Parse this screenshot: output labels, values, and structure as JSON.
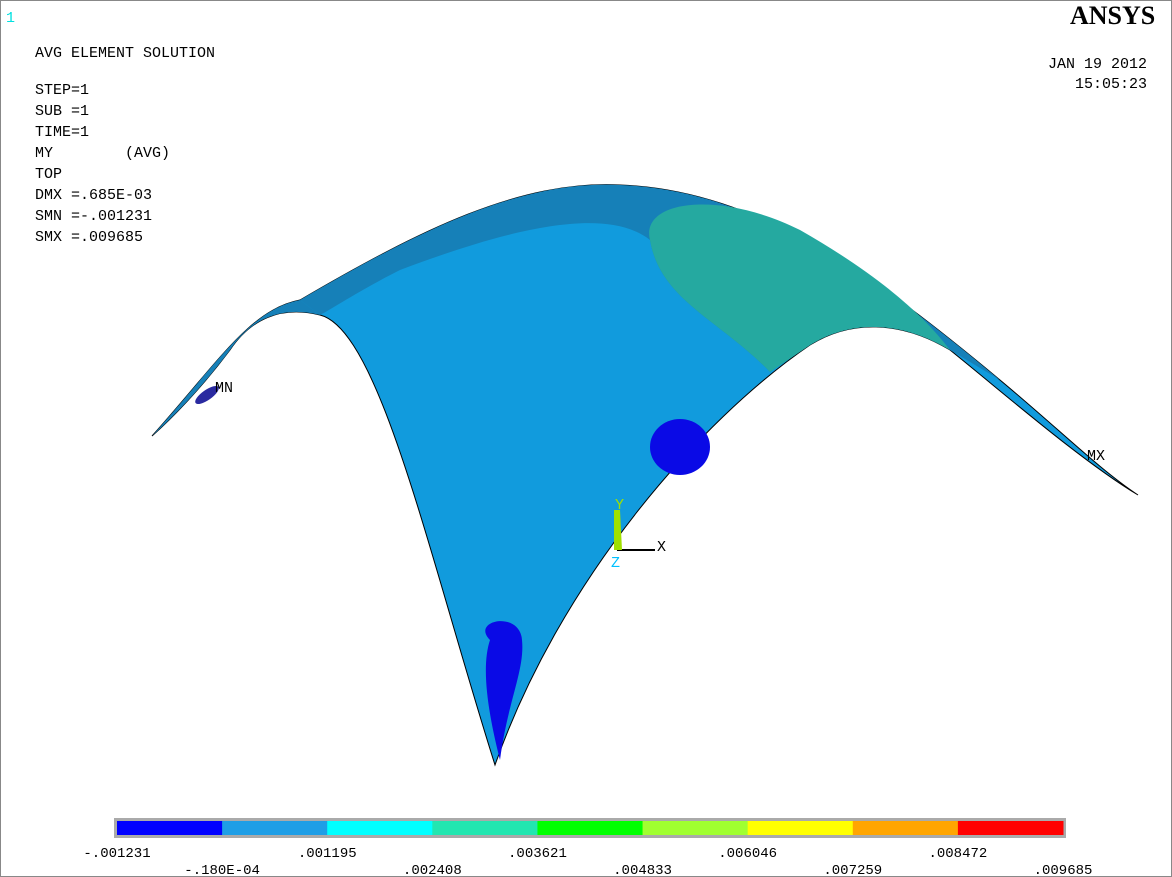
{
  "window_number": "1",
  "logo": "ANSYS",
  "info_lines": [
    "AVG ELEMENT SOLUTION",
    "STEP=1",
    "SUB =1",
    "TIME=1",
    "MY        (AVG)",
    "TOP",
    "DMX =.685E-03",
    "SMN =-.001231",
    "SMX =.009685"
  ],
  "date": "JAN 19 2012",
  "time": "15:05:23",
  "markers": {
    "min": "MN",
    "max": "MX"
  },
  "axes": {
    "x": "X",
    "y": "Y",
    "z": "Z"
  },
  "legend": {
    "colors": [
      "#0000ff",
      "#1e9ee6",
      "#00ffff",
      "#22e6b0",
      "#00ff00",
      "#a0ff30",
      "#ffff00",
      "#ffa500",
      "#ff0000"
    ],
    "labels": [
      "-.001231",
      "-.180E-04",
      ".001195",
      ".002408",
      ".003621",
      ".004833",
      ".006046",
      ".007259",
      ".008472",
      ".009685"
    ]
  }
}
